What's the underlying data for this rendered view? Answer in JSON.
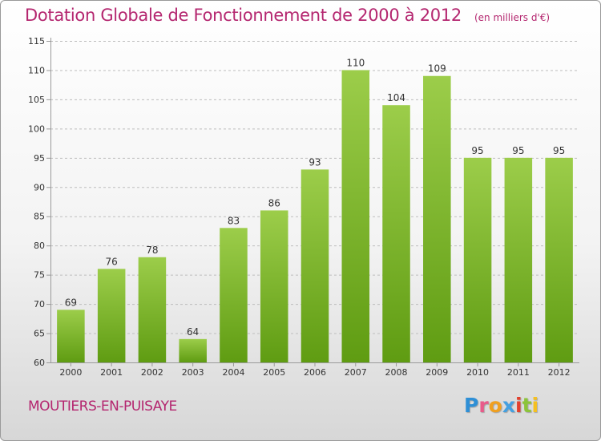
{
  "title": "Dotation Globale de Fonctionnement de 2000 à 2012",
  "unit_label": "(en milliers d'€)",
  "commune": "MOUTIERS-EN-PUISAYE",
  "logo": {
    "text": "Proxiti",
    "letter_colors": [
      "#2e8fd6",
      "#e85b8a",
      "#f0a020",
      "#44a0e0",
      "#e2402d",
      "#8cc43a",
      "#f5c020"
    ]
  },
  "colors": {
    "title": "#b4266f",
    "bar_top": "#9ccd4a",
    "bar_bottom": "#5f9c12",
    "grid": "#bdbdbd",
    "axis": "#9a9a9a"
  },
  "chart_data": {
    "type": "bar",
    "title": "Dotation Globale de Fonctionnement de 2000 à 2012",
    "xlabel": "",
    "ylabel": "",
    "categories": [
      "2000",
      "2001",
      "2002",
      "2003",
      "2004",
      "2005",
      "2006",
      "2007",
      "2008",
      "2009",
      "2010",
      "2011",
      "2012"
    ],
    "values": [
      69,
      76,
      78,
      64,
      83,
      86,
      93,
      110,
      104,
      109,
      95,
      95,
      95
    ],
    "ylim": [
      60,
      115
    ],
    "yticks": [
      60,
      65,
      70,
      75,
      80,
      85,
      90,
      95,
      100,
      105,
      110,
      115
    ],
    "grid": true,
    "legend": "none"
  }
}
